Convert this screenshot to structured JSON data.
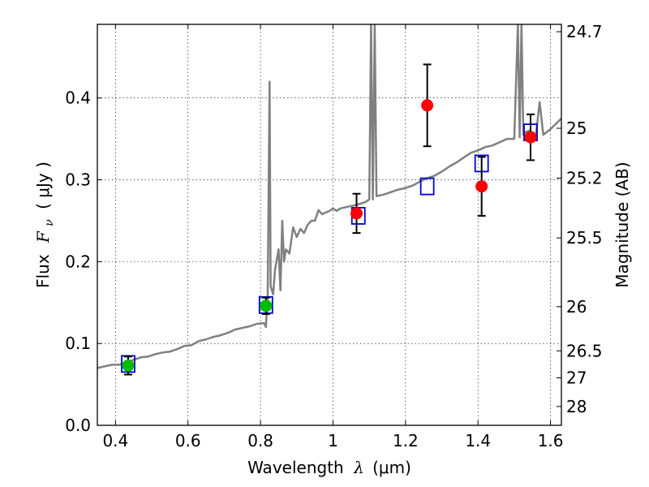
{
  "chart_data": {
    "type": "scatter",
    "xlabel": {
      "prefix": "Wavelength",
      "symbol": "λ",
      "unit": "(μm)"
    },
    "ylabel": {
      "prefix": "Flux",
      "symbol": "F",
      "subscript": "ν",
      "unit": "( μJy )"
    },
    "ylabel_right": "Magnitude (AB)",
    "xlim": [
      0.35,
      1.63
    ],
    "ylim": [
      0.0,
      0.49
    ],
    "x_ticks": [
      0.4,
      0.6,
      0.8,
      1.0,
      1.2,
      1.4,
      1.6
    ],
    "x_tick_labels": [
      "0.4",
      "0.6",
      "0.8",
      "1",
      "1.2",
      "1.4",
      "1.6"
    ],
    "y_ticks": [
      0.0,
      0.1,
      0.2,
      0.3,
      0.4
    ],
    "y_tick_labels": [
      "0.0",
      "0.1",
      "0.2",
      "0.3",
      "0.4"
    ],
    "right_ticks": [
      {
        "label": "24.7",
        "flux": 0.481
      },
      {
        "label": "25",
        "flux": 0.363
      },
      {
        "label": "25.2",
        "flux": 0.302
      },
      {
        "label": "25.5",
        "flux": 0.229
      },
      {
        "label": "26",
        "flux": 0.145
      },
      {
        "label": "26.5",
        "flux": 0.091
      },
      {
        "label": "27",
        "flux": 0.058
      },
      {
        "label": "28",
        "flux": 0.023
      }
    ],
    "grid": true,
    "colors": {
      "model": "#808080",
      "model_points": "#0000cc",
      "observed_red": "#ff0000",
      "observed_green": "#00bb00",
      "errorbar": "#000000"
    },
    "series": [
      {
        "kind": "line",
        "points": [
          [
            0.35,
            0.07
          ],
          [
            0.37,
            0.072
          ],
          [
            0.39,
            0.074
          ],
          [
            0.41,
            0.074
          ],
          [
            0.43,
            0.077
          ],
          [
            0.45,
            0.08
          ],
          [
            0.47,
            0.083
          ],
          [
            0.49,
            0.084
          ],
          [
            0.51,
            0.087
          ],
          [
            0.53,
            0.089
          ],
          [
            0.55,
            0.09
          ],
          [
            0.57,
            0.093
          ],
          [
            0.59,
            0.097
          ],
          [
            0.61,
            0.098
          ],
          [
            0.63,
            0.103
          ],
          [
            0.65,
            0.105
          ],
          [
            0.67,
            0.108
          ],
          [
            0.69,
            0.11
          ],
          [
            0.71,
            0.113
          ],
          [
            0.73,
            0.117
          ],
          [
            0.75,
            0.119
          ],
          [
            0.77,
            0.121
          ],
          [
            0.79,
            0.124
          ],
          [
            0.81,
            0.125
          ],
          [
            0.815,
            0.12
          ],
          [
            0.82,
            0.16
          ],
          [
            0.825,
            0.42
          ],
          [
            0.828,
            0.17
          ],
          [
            0.835,
            0.16
          ],
          [
            0.84,
            0.19
          ],
          [
            0.85,
            0.215
          ],
          [
            0.855,
            0.165
          ],
          [
            0.86,
            0.25
          ],
          [
            0.865,
            0.2
          ],
          [
            0.87,
            0.215
          ],
          [
            0.88,
            0.21
          ],
          [
            0.89,
            0.242
          ],
          [
            0.9,
            0.23
          ],
          [
            0.91,
            0.24
          ],
          [
            0.92,
            0.235
          ],
          [
            0.93,
            0.245
          ],
          [
            0.94,
            0.25
          ],
          [
            0.95,
            0.25
          ],
          [
            0.96,
            0.263
          ],
          [
            0.97,
            0.258
          ],
          [
            0.98,
            0.26
          ],
          [
            0.99,
            0.262
          ],
          [
            1.0,
            0.265
          ],
          [
            1.01,
            0.262
          ],
          [
            1.02,
            0.265
          ],
          [
            1.03,
            0.266
          ],
          [
            1.05,
            0.268
          ],
          [
            1.07,
            0.27
          ],
          [
            1.09,
            0.273
          ],
          [
            1.1,
            0.276
          ],
          [
            1.105,
            0.49
          ],
          [
            1.11,
            0.276
          ],
          [
            1.115,
            0.49
          ],
          [
            1.12,
            0.28
          ],
          [
            1.14,
            0.282
          ],
          [
            1.16,
            0.285
          ],
          [
            1.18,
            0.288
          ],
          [
            1.2,
            0.29
          ],
          [
            1.22,
            0.293
          ],
          [
            1.24,
            0.298
          ],
          [
            1.26,
            0.302
          ],
          [
            1.28,
            0.305
          ],
          [
            1.3,
            0.31
          ],
          [
            1.32,
            0.316
          ],
          [
            1.34,
            0.321
          ],
          [
            1.36,
            0.327
          ],
          [
            1.38,
            0.333
          ],
          [
            1.4,
            0.336
          ],
          [
            1.42,
            0.34
          ],
          [
            1.44,
            0.342
          ],
          [
            1.46,
            0.346
          ],
          [
            1.48,
            0.35
          ],
          [
            1.5,
            0.35
          ],
          [
            1.51,
            0.49
          ],
          [
            1.515,
            0.352
          ],
          [
            1.52,
            0.49
          ],
          [
            1.525,
            0.355
          ],
          [
            1.53,
            0.358
          ],
          [
            1.54,
            0.36
          ],
          [
            1.56,
            0.356
          ],
          [
            1.57,
            0.395
          ],
          [
            1.58,
            0.355
          ],
          [
            1.6,
            0.362
          ],
          [
            1.63,
            0.375
          ]
        ]
      },
      {
        "kind": "open-squares",
        "points": [
          [
            0.435,
            0.075
          ],
          [
            0.815,
            0.147
          ],
          [
            1.07,
            0.256
          ],
          [
            1.26,
            0.292
          ],
          [
            1.41,
            0.32
          ],
          [
            1.545,
            0.358
          ]
        ]
      },
      {
        "kind": "filled-circles-red",
        "points": [
          {
            "x": 1.065,
            "y": 0.259,
            "err": 0.024
          },
          {
            "x": 1.26,
            "y": 0.391,
            "err": 0.05
          },
          {
            "x": 1.41,
            "y": 0.292,
            "err": 0.036
          },
          {
            "x": 1.545,
            "y": 0.352,
            "err": 0.028
          }
        ]
      },
      {
        "kind": "filled-circles-green",
        "points": [
          {
            "x": 0.435,
            "y": 0.073,
            "err": 0.011
          },
          {
            "x": 0.815,
            "y": 0.146,
            "err": 0.01
          }
        ]
      }
    ]
  }
}
